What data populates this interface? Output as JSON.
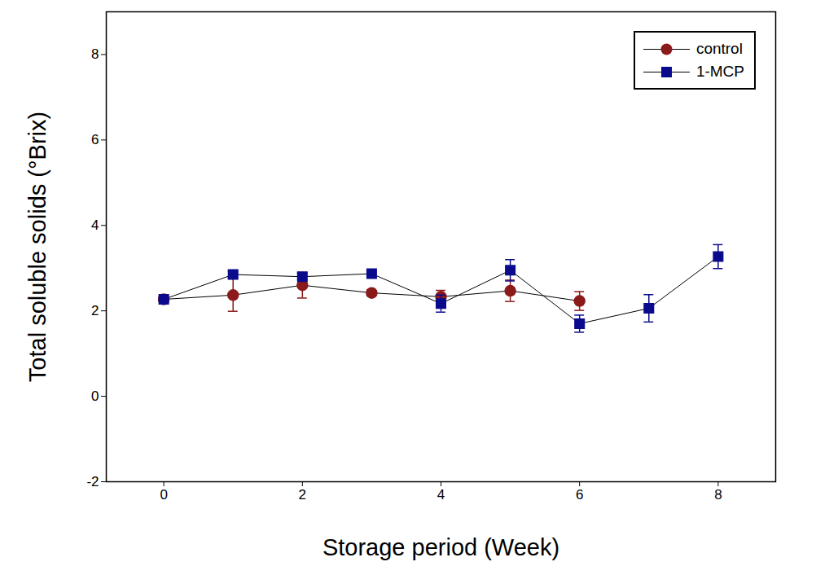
{
  "chart_data": {
    "type": "line",
    "x_label": "Storage period (Week)",
    "y_label": "Total soluble solids (°Brix)",
    "x": [
      0,
      1,
      2,
      3,
      4,
      5,
      6,
      7,
      8
    ],
    "xlim": [
      -0.83,
      8.83
    ],
    "xticks": [
      0,
      2,
      4,
      6,
      8
    ],
    "ylim": [
      -2,
      9
    ],
    "yticks": [
      -2,
      0,
      2,
      4,
      6,
      8
    ],
    "legend": "top-right",
    "grid": false,
    "series": [
      {
        "name": "control",
        "color": "#8b1a1a",
        "marker": "circle",
        "values": [
          2.27,
          2.37,
          2.6,
          2.42,
          2.33,
          2.47,
          2.23,
          null,
          null
        ],
        "errors": [
          0.05,
          0.38,
          0.3,
          0.07,
          0.15,
          0.25,
          0.22,
          null,
          null
        ]
      },
      {
        "name": "1-MCP",
        "color": "#0a0a8c",
        "marker": "square",
        "values": [
          2.27,
          2.85,
          2.8,
          2.87,
          2.17,
          2.95,
          1.7,
          2.06,
          3.27
        ],
        "errors": [
          0.05,
          0.08,
          0.07,
          0.08,
          0.2,
          0.25,
          0.2,
          0.32,
          0.28
        ]
      }
    ]
  }
}
